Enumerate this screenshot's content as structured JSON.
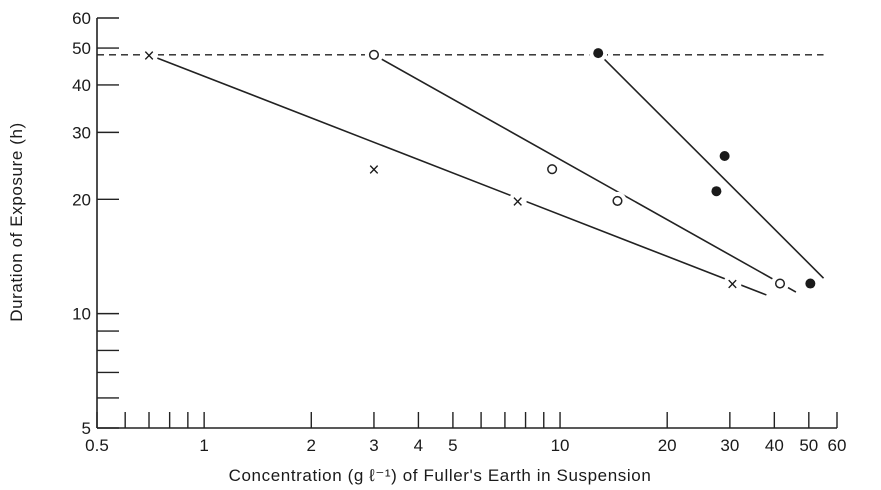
{
  "chart_data": {
    "type": "scatter",
    "title": "",
    "xlabel": "Concentration (g ℓ⁻¹) of Fuller's Earth in Suspension",
    "ylabel": "Duration of Exposure (h)",
    "x_scale": "log",
    "y_scale": "log",
    "xlim": [
      0.5,
      60
    ],
    "ylim": [
      5,
      60
    ],
    "x_tick_labels": [
      {
        "value": 0.5,
        "label": "0.5"
      },
      {
        "value": 1,
        "label": "1"
      },
      {
        "value": 2,
        "label": "2"
      },
      {
        "value": 3,
        "label": "3"
      },
      {
        "value": 4,
        "label": "4"
      },
      {
        "value": 5,
        "label": "5"
      },
      {
        "value": 10,
        "label": "10"
      },
      {
        "value": 20,
        "label": "20"
      },
      {
        "value": 30,
        "label": "30"
      },
      {
        "value": 40,
        "label": "40"
      },
      {
        "value": 50,
        "label": "50"
      },
      {
        "value": 60,
        "label": "60"
      }
    ],
    "x_minor_ticks": [
      0.6,
      0.7,
      0.8,
      0.9,
      6,
      7,
      8,
      9
    ],
    "y_tick_labels": [
      {
        "value": 5,
        "label": "5"
      },
      {
        "value": 10,
        "label": "10"
      },
      {
        "value": 20,
        "label": "20"
      },
      {
        "value": 30,
        "label": "30"
      },
      {
        "value": 40,
        "label": "40"
      },
      {
        "value": 50,
        "label": "50"
      },
      {
        "value": 60,
        "label": "60"
      }
    ],
    "y_minor_ticks": [
      6,
      7,
      8,
      9
    ],
    "reference_line": {
      "style": "dashed",
      "y": 48,
      "x_range": [
        0.5,
        55
      ]
    },
    "series": [
      {
        "marker": "cross",
        "points": [
          [
            0.7,
            48
          ],
          [
            3,
            24
          ],
          [
            7.6,
            19.8
          ],
          [
            30.5,
            12
          ]
        ],
        "fit_line": [
          [
            0.7,
            48
          ],
          [
            38,
            11.2
          ]
        ]
      },
      {
        "marker": "open-circle",
        "points": [
          [
            3,
            48
          ],
          [
            9.5,
            24
          ],
          [
            14.5,
            19.8
          ],
          [
            41.5,
            12
          ]
        ],
        "fit_line": [
          [
            3,
            48
          ],
          [
            46,
            11.4
          ]
        ]
      },
      {
        "marker": "filled-circle",
        "points": [
          [
            12.8,
            48.5
          ],
          [
            27.5,
            21
          ],
          [
            29,
            26
          ],
          [
            50.5,
            12
          ]
        ],
        "fit_line": [
          [
            12.8,
            48.5
          ],
          [
            55,
            12.4
          ]
        ]
      }
    ]
  }
}
